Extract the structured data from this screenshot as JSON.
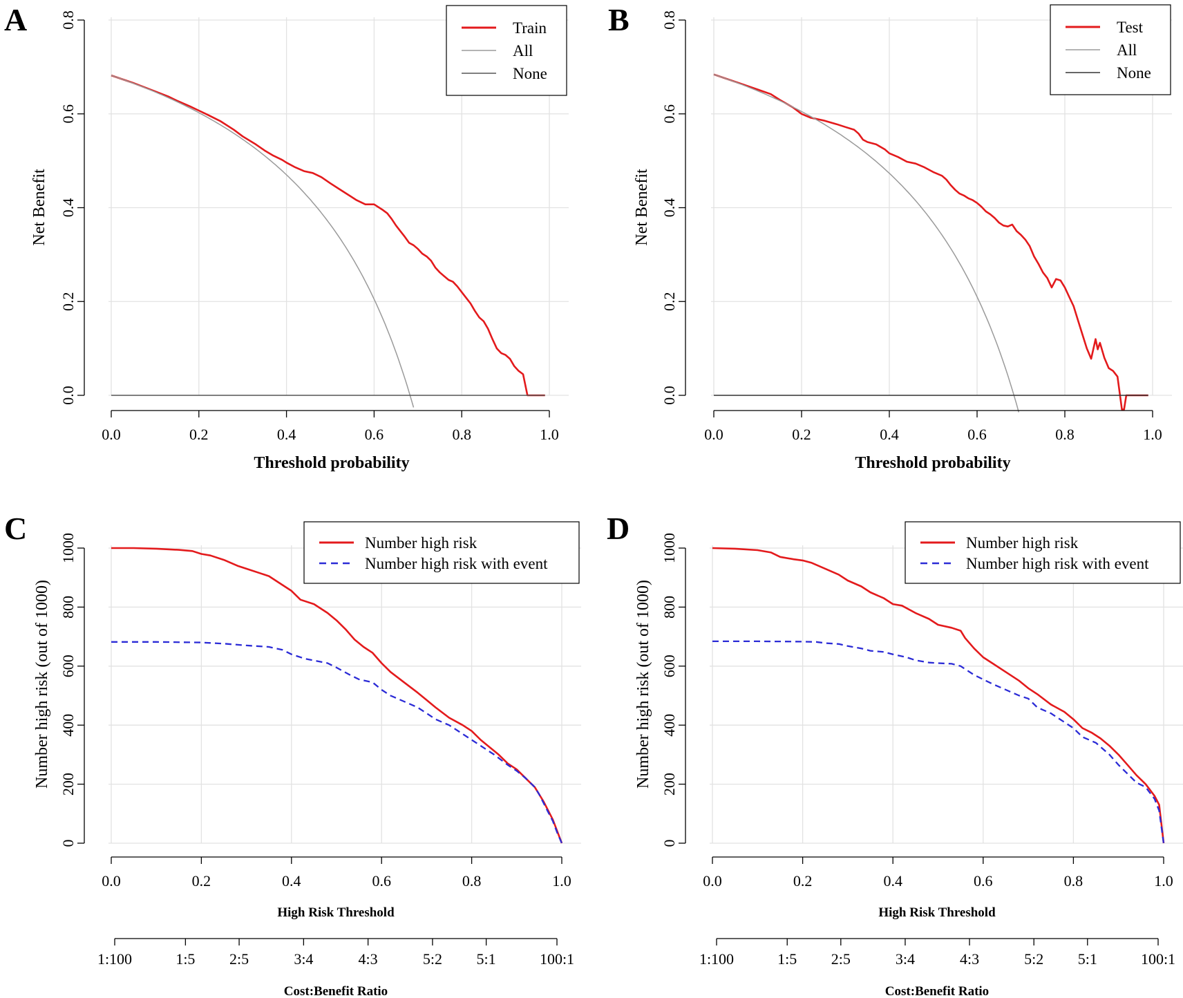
{
  "chart_data": [
    {
      "panel": "A",
      "type": "line",
      "xlabel": "Threshold probability",
      "ylabel": "Net Benefit",
      "xlim": [
        0,
        1
      ],
      "ylim": [
        0,
        0.8
      ],
      "x_ticks": [
        "0.0",
        "0.2",
        "0.4",
        "0.6",
        "0.8",
        "1.0"
      ],
      "y_ticks": [
        "0.0",
        "0.2",
        "0.4",
        "0.6",
        "0.8"
      ],
      "grid": true,
      "legend_position": "top-right",
      "series": [
        {
          "name": "Train",
          "color": "#e31a1c",
          "x": [
            0,
            0.05,
            0.1,
            0.13,
            0.15,
            0.18,
            0.2,
            0.22,
            0.25,
            0.28,
            0.3,
            0.33,
            0.35,
            0.37,
            0.39,
            0.4,
            0.42,
            0.44,
            0.46,
            0.48,
            0.5,
            0.52,
            0.54,
            0.56,
            0.58,
            0.6,
            0.62,
            0.63,
            0.64,
            0.65,
            0.66,
            0.67,
            0.68,
            0.69,
            0.7,
            0.71,
            0.72,
            0.73,
            0.74,
            0.75,
            0.76,
            0.77,
            0.78,
            0.79,
            0.8,
            0.81,
            0.82,
            0.83,
            0.84,
            0.85,
            0.86,
            0.87,
            0.88,
            0.89,
            0.9,
            0.91,
            0.92,
            0.93,
            0.94,
            0.95,
            0.96,
            0.98,
            0.99
          ],
          "y": [
            0.682,
            0.666,
            0.648,
            0.637,
            0.628,
            0.616,
            0.607,
            0.598,
            0.584,
            0.566,
            0.552,
            0.535,
            0.522,
            0.511,
            0.502,
            0.496,
            0.486,
            0.478,
            0.474,
            0.465,
            0.452,
            0.44,
            0.428,
            0.416,
            0.407,
            0.407,
            0.395,
            0.388,
            0.376,
            0.362,
            0.35,
            0.338,
            0.325,
            0.32,
            0.312,
            0.302,
            0.296,
            0.287,
            0.272,
            0.262,
            0.254,
            0.246,
            0.242,
            0.232,
            0.22,
            0.208,
            0.196,
            0.18,
            0.166,
            0.158,
            0.142,
            0.12,
            0.1,
            0.09,
            0.086,
            0.078,
            0.062,
            0.052,
            0.045,
            0.0,
            0.0,
            0.0,
            0.0
          ]
        },
        {
          "name": "All",
          "color": "#9a9a9a",
          "prevalence": 0.682
        },
        {
          "name": "None",
          "color": "#555555",
          "value": 0
        }
      ]
    },
    {
      "panel": "B",
      "type": "line",
      "xlabel": "Threshold probability",
      "ylabel": "Net Benefit",
      "xlim": [
        0,
        1
      ],
      "ylim": [
        0,
        0.8
      ],
      "x_ticks": [
        "0.0",
        "0.2",
        "0.4",
        "0.6",
        "0.8",
        "1.0"
      ],
      "y_ticks": [
        "0.0",
        "0.2",
        "0.4",
        "0.6",
        "0.8"
      ],
      "grid": true,
      "legend_position": "top-right",
      "series": [
        {
          "name": "Test",
          "color": "#e31a1c",
          "x": [
            0,
            0.05,
            0.1,
            0.13,
            0.15,
            0.18,
            0.2,
            0.22,
            0.25,
            0.28,
            0.3,
            0.32,
            0.33,
            0.34,
            0.35,
            0.37,
            0.39,
            0.4,
            0.42,
            0.44,
            0.46,
            0.48,
            0.5,
            0.52,
            0.53,
            0.54,
            0.55,
            0.56,
            0.57,
            0.58,
            0.59,
            0.6,
            0.61,
            0.62,
            0.63,
            0.64,
            0.65,
            0.66,
            0.67,
            0.68,
            0.69,
            0.7,
            0.71,
            0.72,
            0.73,
            0.74,
            0.75,
            0.76,
            0.77,
            0.78,
            0.79,
            0.8,
            0.81,
            0.82,
            0.83,
            0.84,
            0.85,
            0.86,
            0.87,
            0.875,
            0.88,
            0.89,
            0.9,
            0.91,
            0.92,
            0.93,
            0.935,
            0.94,
            0.945,
            0.95,
            0.96,
            0.97,
            0.99
          ],
          "y": [
            0.684,
            0.668,
            0.652,
            0.642,
            0.63,
            0.614,
            0.6,
            0.592,
            0.586,
            0.578,
            0.572,
            0.566,
            0.558,
            0.545,
            0.54,
            0.535,
            0.524,
            0.516,
            0.508,
            0.498,
            0.494,
            0.486,
            0.476,
            0.468,
            0.46,
            0.448,
            0.438,
            0.43,
            0.426,
            0.42,
            0.416,
            0.41,
            0.402,
            0.392,
            0.386,
            0.378,
            0.368,
            0.362,
            0.36,
            0.364,
            0.35,
            0.342,
            0.332,
            0.318,
            0.296,
            0.28,
            0.262,
            0.25,
            0.23,
            0.248,
            0.245,
            0.23,
            0.21,
            0.19,
            0.16,
            0.13,
            0.1,
            0.078,
            0.12,
            0.098,
            0.112,
            0.08,
            0.058,
            0.052,
            0.04,
            -0.03,
            -0.03,
            0.0,
            0.0,
            0.0,
            0.0,
            0.0,
            0.0
          ]
        },
        {
          "name": "All",
          "color": "#9a9a9a",
          "prevalence": 0.684
        },
        {
          "name": "None",
          "color": "#333333",
          "value": 0
        }
      ]
    },
    {
      "panel": "C",
      "type": "line",
      "xlabel": "High Risk Threshold",
      "ylabel": "Number high risk (out of 1000)",
      "xlim": [
        0,
        1
      ],
      "ylim": [
        0,
        1000
      ],
      "x_ticks": [
        "0.0",
        "0.2",
        "0.4",
        "0.6",
        "0.8",
        "1.0"
      ],
      "y_ticks": [
        "0",
        "200",
        "400",
        "600",
        "800",
        "1000"
      ],
      "grid": true,
      "legend_position": "top-right",
      "secondary_axis": {
        "label": "Cost:Benefit Ratio",
        "ticks": [
          "1:100",
          "1:5",
          "2:5",
          "3:4",
          "4:3",
          "5:2",
          "5:1",
          "100:1"
        ],
        "tick_thresholds": [
          0.0099,
          0.1667,
          0.2857,
          0.4286,
          0.5714,
          0.7143,
          0.8333,
          0.9901
        ]
      },
      "series": [
        {
          "name": "Number high risk",
          "color": "#e31a1c",
          "style": "solid",
          "x": [
            0,
            0.05,
            0.1,
            0.15,
            0.18,
            0.2,
            0.22,
            0.25,
            0.28,
            0.3,
            0.33,
            0.35,
            0.37,
            0.4,
            0.42,
            0.45,
            0.48,
            0.5,
            0.52,
            0.54,
            0.56,
            0.58,
            0.6,
            0.62,
            0.65,
            0.68,
            0.7,
            0.72,
            0.75,
            0.78,
            0.8,
            0.82,
            0.84,
            0.86,
            0.88,
            0.9,
            0.92,
            0.94,
            0.95,
            0.96,
            0.97,
            0.98,
            0.99,
            1.0
          ],
          "y": [
            1000,
            1000,
            998,
            994,
            990,
            980,
            975,
            960,
            940,
            930,
            915,
            905,
            885,
            855,
            825,
            810,
            780,
            755,
            725,
            690,
            665,
            645,
            610,
            580,
            545,
            510,
            485,
            460,
            425,
            400,
            380,
            350,
            325,
            300,
            270,
            250,
            220,
            190,
            165,
            140,
            110,
            80,
            40,
            0
          ]
        },
        {
          "name": "Number high risk with event",
          "color": "#2b2bd6",
          "style": "dashed",
          "x": [
            0,
            0.1,
            0.2,
            0.25,
            0.3,
            0.35,
            0.38,
            0.4,
            0.43,
            0.48,
            0.5,
            0.53,
            0.55,
            0.58,
            0.6,
            0.62,
            0.65,
            0.68,
            0.7,
            0.72,
            0.75,
            0.78,
            0.8,
            0.82,
            0.85,
            0.88,
            0.9,
            0.92,
            0.94,
            0.95,
            0.96,
            0.97,
            0.98,
            0.99,
            1.0
          ],
          "y": [
            682,
            682,
            680,
            676,
            670,
            665,
            655,
            640,
            625,
            610,
            595,
            570,
            555,
            545,
            520,
            500,
            480,
            460,
            440,
            420,
            400,
            370,
            350,
            330,
            300,
            265,
            245,
            220,
            190,
            165,
            135,
            105,
            75,
            35,
            0
          ]
        }
      ]
    },
    {
      "panel": "D",
      "type": "line",
      "xlabel": "High Risk Threshold",
      "ylabel": "Number high risk (out of 1000)",
      "xlim": [
        0,
        1
      ],
      "ylim": [
        0,
        1000
      ],
      "x_ticks": [
        "0.0",
        "0.2",
        "0.4",
        "0.6",
        "0.8",
        "1.0"
      ],
      "y_ticks": [
        "0",
        "200",
        "400",
        "600",
        "800",
        "1000"
      ],
      "grid": true,
      "legend_position": "top-right",
      "secondary_axis": {
        "label": "Cost:Benefit Ratio",
        "ticks": [
          "1:100",
          "1:5",
          "2:5",
          "3:4",
          "4:3",
          "5:2",
          "5:1",
          "100:1"
        ],
        "tick_thresholds": [
          0.0099,
          0.1667,
          0.2857,
          0.4286,
          0.5714,
          0.7143,
          0.8333,
          0.9901
        ]
      },
      "series": [
        {
          "name": "Number high risk",
          "color": "#e31a1c",
          "style": "solid",
          "x": [
            0,
            0.05,
            0.1,
            0.13,
            0.15,
            0.18,
            0.2,
            0.22,
            0.25,
            0.28,
            0.3,
            0.33,
            0.35,
            0.38,
            0.4,
            0.42,
            0.45,
            0.48,
            0.5,
            0.53,
            0.55,
            0.56,
            0.58,
            0.6,
            0.62,
            0.65,
            0.68,
            0.7,
            0.72,
            0.75,
            0.78,
            0.8,
            0.82,
            0.84,
            0.86,
            0.88,
            0.9,
            0.92,
            0.94,
            0.96,
            0.97,
            0.98,
            0.99,
            1.0
          ],
          "y": [
            1000,
            998,
            993,
            985,
            970,
            962,
            958,
            950,
            930,
            910,
            890,
            870,
            850,
            830,
            810,
            805,
            780,
            760,
            740,
            730,
            720,
            695,
            660,
            630,
            610,
            580,
            550,
            525,
            505,
            470,
            445,
            420,
            390,
            375,
            355,
            330,
            300,
            265,
            230,
            200,
            180,
            160,
            130,
            0
          ]
        },
        {
          "name": "Number high risk with event",
          "color": "#2b2bd6",
          "style": "dashed",
          "x": [
            0,
            0.1,
            0.2,
            0.23,
            0.25,
            0.28,
            0.3,
            0.33,
            0.35,
            0.38,
            0.4,
            0.43,
            0.45,
            0.48,
            0.5,
            0.53,
            0.55,
            0.58,
            0.6,
            0.62,
            0.65,
            0.68,
            0.7,
            0.72,
            0.75,
            0.78,
            0.8,
            0.82,
            0.85,
            0.88,
            0.9,
            0.92,
            0.94,
            0.96,
            0.97,
            0.98,
            0.99,
            1.0
          ],
          "y": [
            684,
            684,
            683,
            682,
            678,
            675,
            668,
            660,
            652,
            648,
            640,
            630,
            620,
            612,
            610,
            608,
            600,
            570,
            555,
            540,
            520,
            500,
            490,
            460,
            440,
            410,
            390,
            360,
            340,
            300,
            265,
            235,
            205,
            190,
            170,
            150,
            110,
            0
          ]
        }
      ]
    }
  ]
}
